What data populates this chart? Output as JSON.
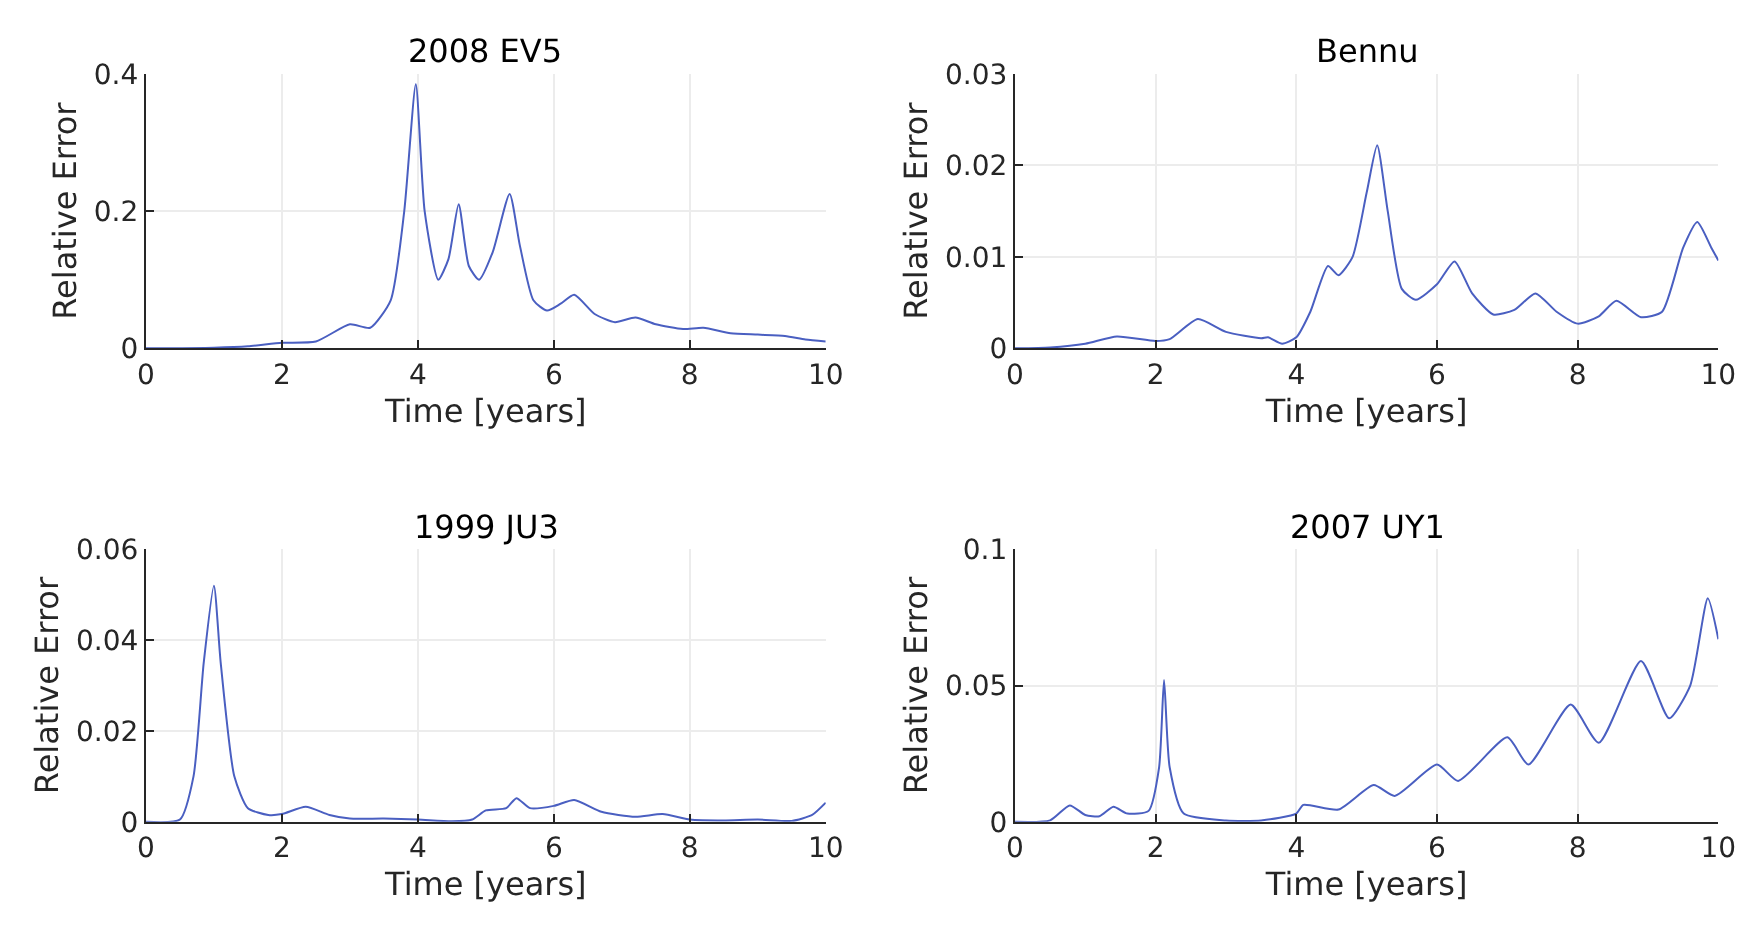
{
  "chart_data": [
    {
      "type": "line",
      "title": "2008 EV5",
      "xlabel": "Time [years]",
      "ylabel": "Relative Error",
      "xlim": [
        0,
        10
      ],
      "xticks": [
        0,
        2,
        4,
        6,
        8,
        10
      ],
      "ylim": [
        0,
        0.4
      ],
      "yticks": [
        0,
        0.2,
        0.4
      ],
      "grid": true,
      "series": [
        {
          "color": "#4a5fc1",
          "x": [
            0,
            1,
            1.5,
            2,
            2.5,
            3,
            3.3,
            3.6,
            3.8,
            3.97,
            4.1,
            4.3,
            4.45,
            4.6,
            4.75,
            4.9,
            5.1,
            5.35,
            5.5,
            5.7,
            5.9,
            6.1,
            6.3,
            6.6,
            6.9,
            7.2,
            7.5,
            7.9,
            8.2,
            8.6,
            9.0,
            9.4,
            9.7,
            10
          ],
          "values": [
            0,
            0.001,
            0.003,
            0.008,
            0.01,
            0.035,
            0.03,
            0.07,
            0.2,
            0.385,
            0.2,
            0.1,
            0.13,
            0.21,
            0.12,
            0.1,
            0.14,
            0.225,
            0.15,
            0.07,
            0.055,
            0.065,
            0.078,
            0.05,
            0.038,
            0.045,
            0.035,
            0.028,
            0.03,
            0.022,
            0.02,
            0.018,
            0.013,
            0.01
          ]
        }
      ]
    },
    {
      "type": "line",
      "title": "Bennu",
      "xlabel": "Time [years]",
      "ylabel": "Relative Error",
      "xlim": [
        0,
        10
      ],
      "xticks": [
        0,
        2,
        4,
        6,
        8,
        10
      ],
      "ylim": [
        0,
        0.03
      ],
      "yticks": [
        0,
        0.01,
        0.02,
        0.03
      ],
      "grid": true,
      "series": [
        {
          "color": "#4a5fc1",
          "x": [
            0,
            0.5,
            1,
            1.45,
            2,
            2.2,
            2.6,
            3,
            3.5,
            3.6,
            3.8,
            4,
            4.2,
            4.45,
            4.6,
            4.8,
            5.0,
            5.15,
            5.3,
            5.5,
            5.7,
            6.0,
            6.25,
            6.5,
            6.8,
            7.1,
            7.4,
            7.7,
            8.0,
            8.3,
            8.55,
            8.9,
            9.2,
            9.5,
            9.7,
            9.9,
            10
          ],
          "values": [
            0,
            0.0001,
            0.0005,
            0.0013,
            0.0008,
            0.001,
            0.0032,
            0.0018,
            0.0011,
            0.0012,
            0.0005,
            0.0012,
            0.004,
            0.009,
            0.008,
            0.01,
            0.017,
            0.0222,
            0.015,
            0.0065,
            0.0053,
            0.007,
            0.0095,
            0.006,
            0.0037,
            0.0042,
            0.006,
            0.004,
            0.0027,
            0.0035,
            0.0052,
            0.0034,
            0.004,
            0.011,
            0.0138,
            0.011,
            0.0096
          ]
        }
      ]
    },
    {
      "type": "line",
      "title": "1999 JU3",
      "xlabel": "Time [years]",
      "ylabel": "Relative Error",
      "xlim": [
        0,
        10
      ],
      "xticks": [
        0,
        2,
        4,
        6,
        8,
        10
      ],
      "ylim": [
        0,
        0.06
      ],
      "yticks": [
        0,
        0.02,
        0.04,
        0.06
      ],
      "grid": true,
      "series": [
        {
          "color": "#4a5fc1",
          "x": [
            0,
            0.5,
            0.7,
            0.85,
            1.0,
            1.1,
            1.3,
            1.5,
            1.8,
            2.0,
            2.35,
            2.7,
            3.0,
            3.5,
            4.0,
            4.5,
            4.8,
            5.0,
            5.3,
            5.45,
            5.65,
            6.0,
            6.3,
            6.7,
            7.2,
            7.6,
            8.0,
            8.5,
            9.0,
            9.5,
            9.8,
            10
          ],
          "values": [
            0,
            0.0005,
            0.01,
            0.035,
            0.052,
            0.035,
            0.01,
            0.003,
            0.0015,
            0.0017,
            0.0033,
            0.0015,
            0.0007,
            0.0007,
            0.0005,
            0.0001,
            0.0005,
            0.0025,
            0.003,
            0.0052,
            0.003,
            0.0035,
            0.0048,
            0.0022,
            0.0011,
            0.0017,
            0.0005,
            0.0003,
            0.0005,
            0.0002,
            0.0015,
            0.0042
          ]
        }
      ]
    },
    {
      "type": "line",
      "title": "2007 UY1",
      "xlabel": "Time [years]",
      "ylabel": "Relative Error",
      "xlim": [
        0,
        10
      ],
      "xticks": [
        0,
        2,
        4,
        6,
        8,
        10
      ],
      "ylim": [
        0,
        0.1
      ],
      "yticks": [
        0,
        0.05,
        0.1
      ],
      "grid": true,
      "series": [
        {
          "color": "#4a5fc1",
          "x": [
            0,
            0.5,
            0.78,
            1.0,
            1.2,
            1.4,
            1.6,
            1.9,
            2.05,
            2.12,
            2.2,
            2.4,
            3.0,
            3.5,
            4.0,
            4.1,
            4.6,
            5.1,
            5.4,
            6.0,
            6.3,
            7.0,
            7.3,
            7.9,
            8.3,
            8.9,
            9.3,
            9.6,
            9.85,
            10
          ],
          "values": [
            0,
            0.0005,
            0.006,
            0.0025,
            0.002,
            0.0055,
            0.003,
            0.004,
            0.02,
            0.052,
            0.02,
            0.003,
            0.0005,
            0.0005,
            0.003,
            0.0062,
            0.0045,
            0.0135,
            0.0095,
            0.021,
            0.015,
            0.031,
            0.021,
            0.043,
            0.029,
            0.059,
            0.038,
            0.05,
            0.082,
            0.067
          ]
        }
      ]
    }
  ]
}
